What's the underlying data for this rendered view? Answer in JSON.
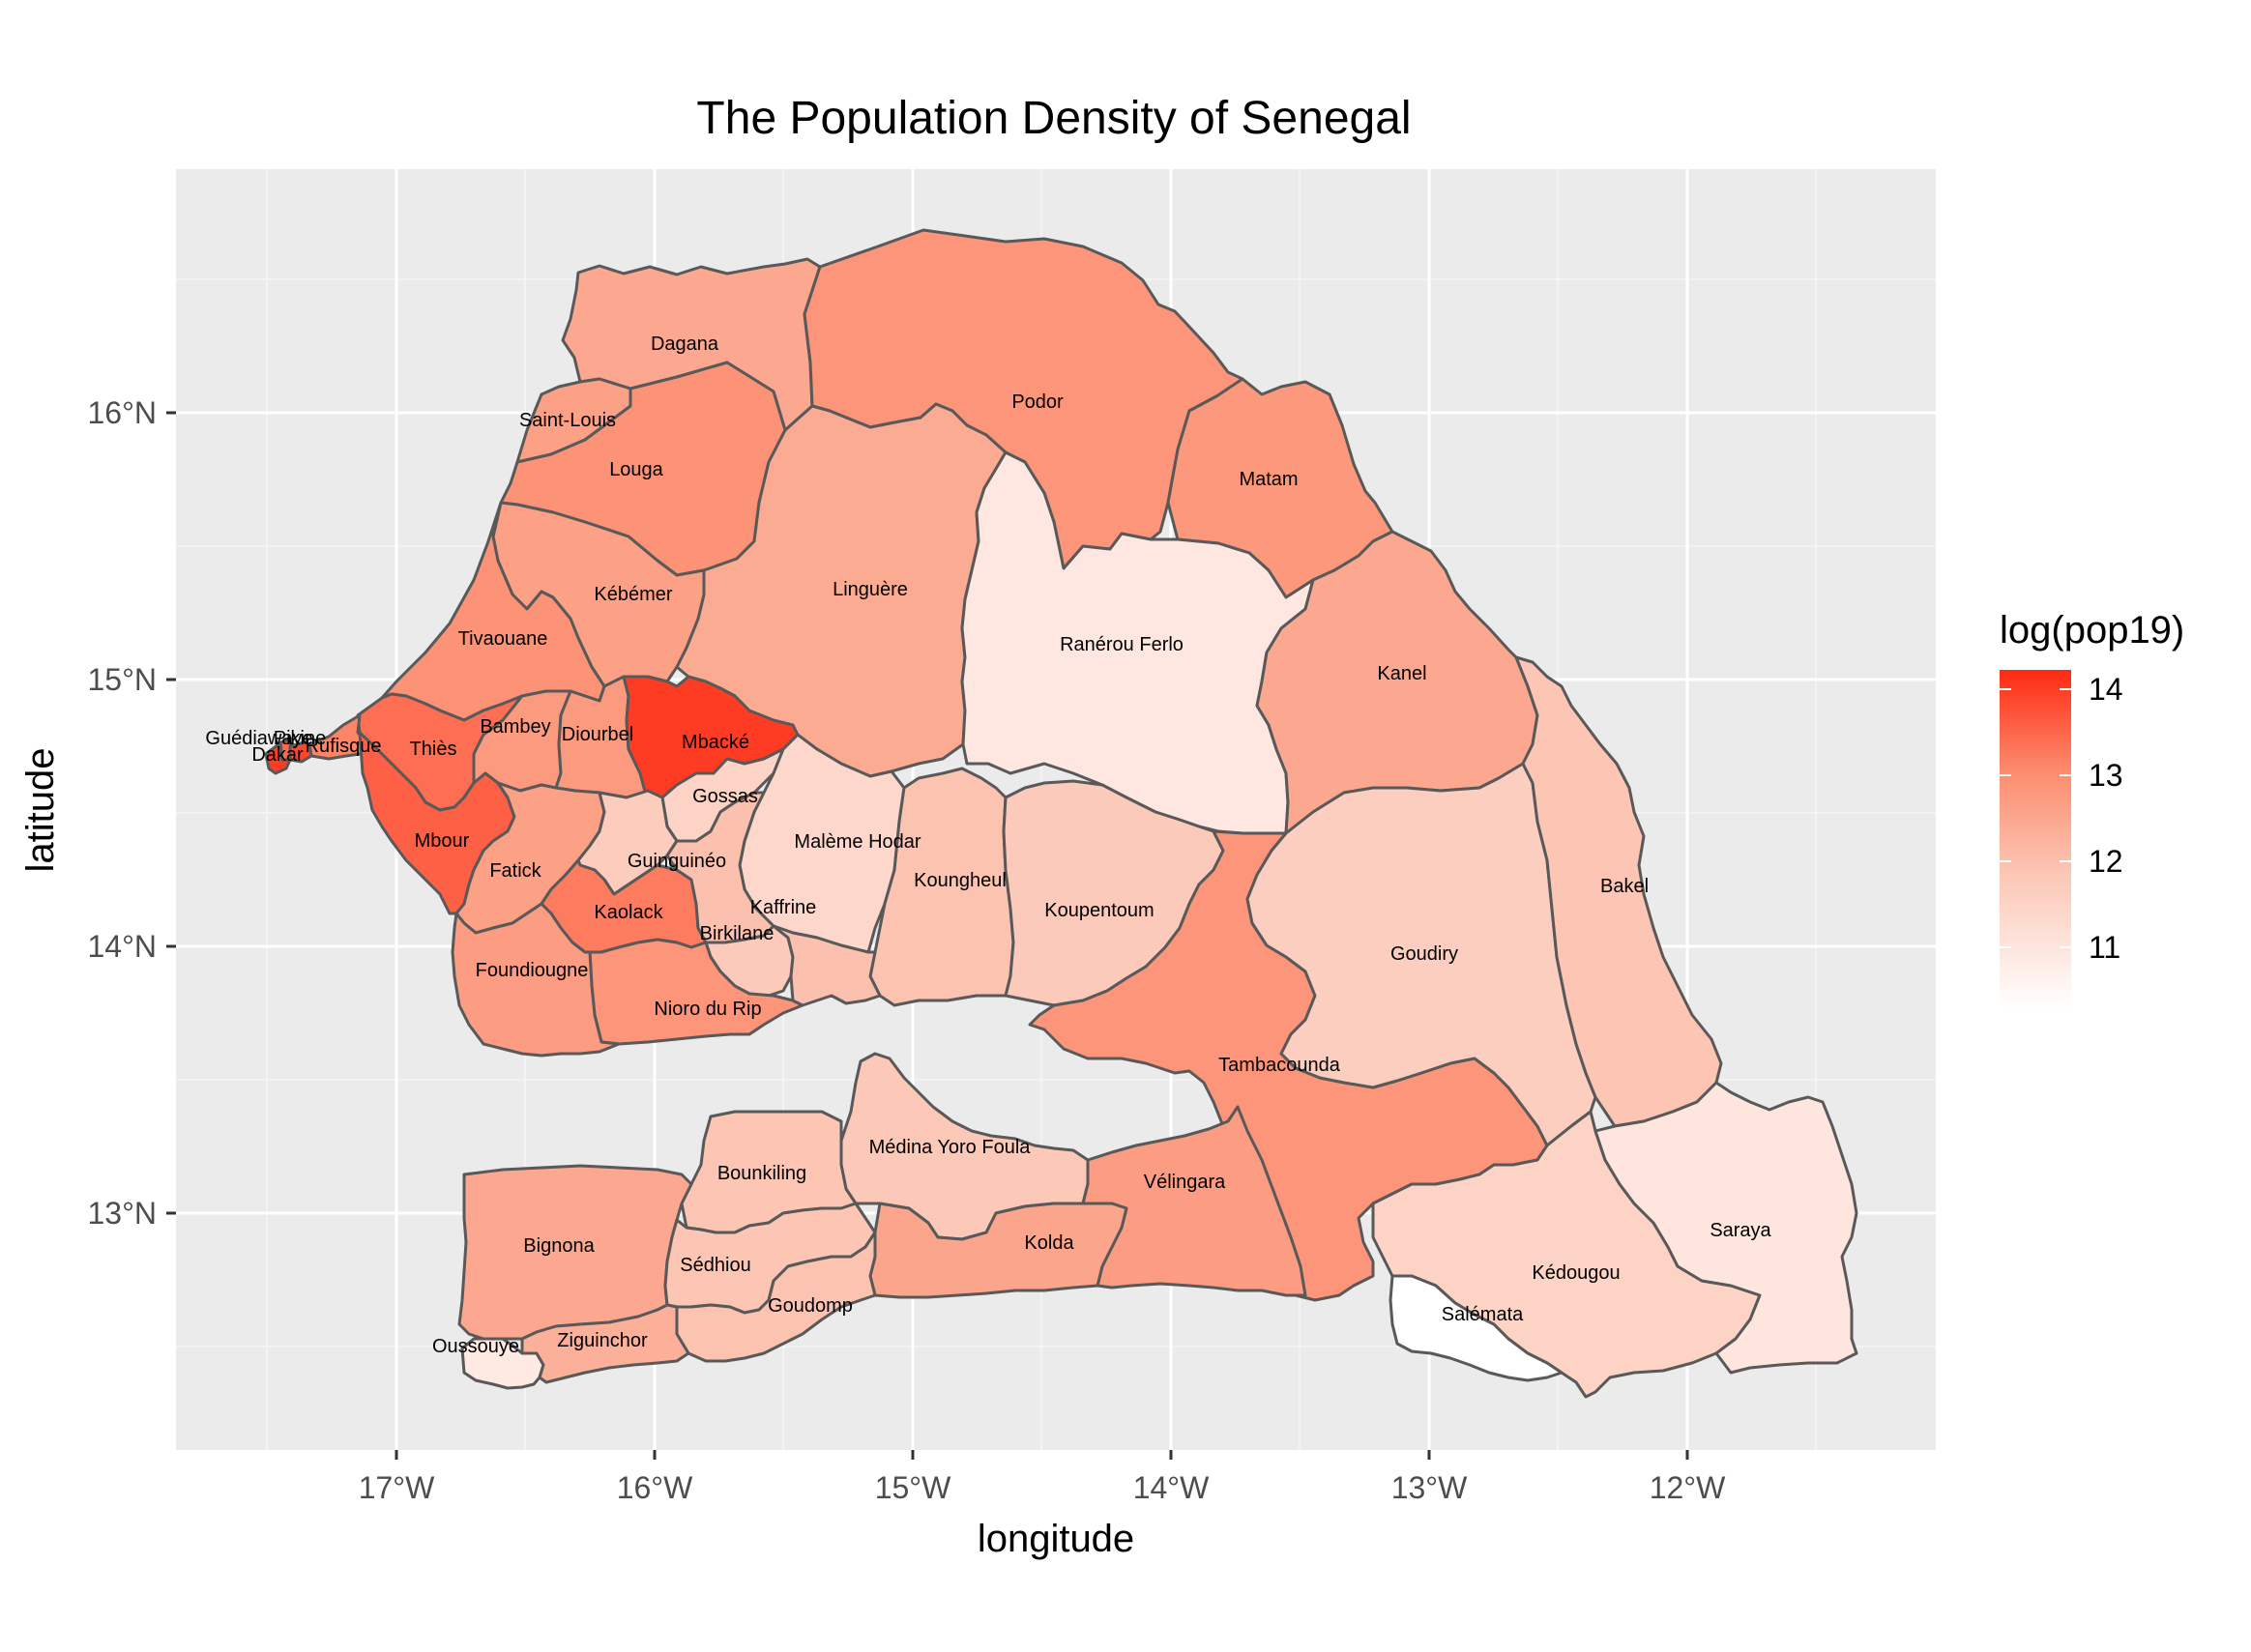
{
  "title": "The Population Density of Senegal",
  "xlabel": "longitude",
  "ylabel": "latitude",
  "x_ticks": [
    "17°W",
    "16°W",
    "15°W",
    "14°W",
    "13°W",
    "12°W"
  ],
  "y_ticks": [
    "16°N",
    "15°N",
    "14°N",
    "13°N"
  ],
  "legend": {
    "title": "log(pop19)",
    "ticks": [
      "14",
      "13",
      "12",
      "11"
    ],
    "low_color": "#ffffff",
    "high_color": "#ff2a12"
  },
  "colors": {
    "panel": "#ebebeb",
    "grid": "#ffffff",
    "border": "#595959"
  },
  "chart_data": {
    "type": "choropleth",
    "variable": "log(pop19)",
    "lon_range": [
      -17.85,
      -11.2
    ],
    "lat_range": [
      12.15,
      16.95
    ],
    "departments": [
      {
        "name": "Dagana",
        "value": 12.6
      },
      {
        "name": "Podor",
        "value": 12.95
      },
      {
        "name": "Saint-Louis",
        "value": 12.75
      },
      {
        "name": "Louga",
        "value": 13.0
      },
      {
        "name": "Matam",
        "value": 12.9
      },
      {
        "name": "Linguère",
        "value": 12.55
      },
      {
        "name": "Kébémer",
        "value": 12.75
      },
      {
        "name": "Ranérou Ferlo",
        "value": 11.2
      },
      {
        "name": "Tivaouane",
        "value": 13.0
      },
      {
        "name": "Kanel",
        "value": 12.6
      },
      {
        "name": "Thiès",
        "value": 13.45
      },
      {
        "name": "Bambey",
        "value": 12.85
      },
      {
        "name": "Diourbel",
        "value": 12.85
      },
      {
        "name": "Mbacké",
        "value": 14.0
      },
      {
        "name": "Guédiawaye",
        "value": 13.5
      },
      {
        "name": "Pikine",
        "value": 13.9
      },
      {
        "name": "Rufisque",
        "value": 13.2
      },
      {
        "name": "Dakar",
        "value": 14.0
      },
      {
        "name": "Gossas",
        "value": 11.7
      },
      {
        "name": "Malème Hodar",
        "value": 11.6
      },
      {
        "name": "Mbour",
        "value": 13.6
      },
      {
        "name": "Fatick",
        "value": 12.75
      },
      {
        "name": "Guinguinéo",
        "value": 11.9
      },
      {
        "name": "Koungheul",
        "value": 12.1
      },
      {
        "name": "Koupentoum",
        "value": 11.95
      },
      {
        "name": "Bakel",
        "value": 12.05
      },
      {
        "name": "Kaffrine",
        "value": 12.15
      },
      {
        "name": "Kaolack",
        "value": 13.3
      },
      {
        "name": "Birkilane",
        "value": 11.95
      },
      {
        "name": "Goudiry",
        "value": 11.85
      },
      {
        "name": "Foundiougne",
        "value": 12.8
      },
      {
        "name": "Nioro du Rip",
        "value": 12.95
      },
      {
        "name": "Tambacounda",
        "value": 12.95
      },
      {
        "name": "Médina Yoro Foula",
        "value": 12.0
      },
      {
        "name": "Bounkiling",
        "value": 12.05
      },
      {
        "name": "Vélingara",
        "value": 12.8
      },
      {
        "name": "Bignona",
        "value": 12.6
      },
      {
        "name": "Sédhiou",
        "value": 12.05
      },
      {
        "name": "Kolda",
        "value": 12.65
      },
      {
        "name": "Goudomp",
        "value": 12.1
      },
      {
        "name": "Kédougou",
        "value": 11.7
      },
      {
        "name": "Saraya",
        "value": 11.25
      },
      {
        "name": "Salémata",
        "value": 10.6
      },
      {
        "name": "Oussouye",
        "value": 11.15
      },
      {
        "name": "Ziguinchor",
        "value": 12.45
      }
    ]
  }
}
